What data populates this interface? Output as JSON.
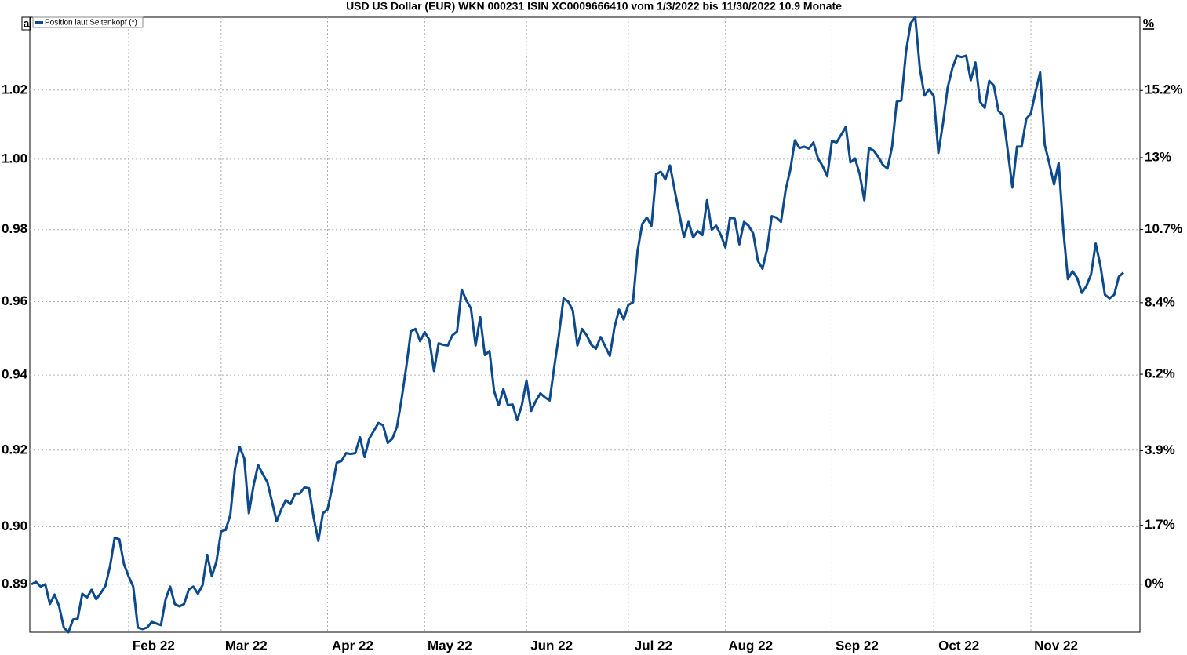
{
  "chart_data": {
    "type": "line",
    "title": "USD US Dollar (EUR) WKN 000231 ISIN XC0009666410 vom 1/3/2022 bis 11/30/2022 10.9 Monate",
    "y_axis_label": "a",
    "y2_axis_label": "%",
    "log_scale": true,
    "grid": true,
    "legend": "top-left",
    "ylim": [
      0.8732,
      1.0415
    ],
    "yticks": [
      {
        "value": 0.8853,
        "label": "0.89"
      },
      {
        "value": 0.9,
        "label": "0.90"
      },
      0.92,
      0.94,
      0.96,
      0.98,
      {
        "value": 1,
        "label": "1.00"
      },
      1.02
    ],
    "y2lim": [
      -1.37,
      17.64
    ],
    "y2ticks": [
      {
        "value": 0,
        "label": "0%"
      },
      {
        "value": 1.7,
        "label": "1.7%"
      },
      {
        "value": 3.9,
        "label": "3.9%"
      },
      {
        "value": 6.2,
        "label": "6.2%"
      },
      {
        "value": 8.4,
        "label": "8.4%"
      },
      {
        "value": 10.7,
        "label": "10.7%"
      },
      {
        "value": 13,
        "label": "13%"
      },
      {
        "value": 15.2,
        "label": "15.2%"
      }
    ],
    "categories": [
      null,
      null,
      null,
      null,
      null,
      null,
      null,
      null,
      null,
      null,
      null,
      null,
      null,
      null,
      null,
      null,
      null,
      null,
      null,
      null,
      null,
      "Feb 22",
      null,
      null,
      null,
      null,
      null,
      null,
      null,
      null,
      null,
      null,
      null,
      null,
      null,
      null,
      null,
      null,
      null,
      null,
      null,
      "Mar 22",
      null,
      null,
      null,
      null,
      null,
      null,
      null,
      null,
      null,
      null,
      null,
      null,
      null,
      null,
      null,
      null,
      null,
      null,
      null,
      null,
      null,
      null,
      "Apr 22",
      null,
      null,
      null,
      null,
      null,
      null,
      null,
      null,
      null,
      null,
      null,
      null,
      null,
      null,
      null,
      null,
      null,
      null,
      null,
      null,
      "May 22",
      null,
      null,
      null,
      null,
      null,
      null,
      null,
      null,
      null,
      null,
      null,
      null,
      null,
      null,
      null,
      null,
      null,
      null,
      null,
      null,
      null,
      "Jun 22",
      null,
      null,
      null,
      null,
      null,
      null,
      null,
      null,
      null,
      null,
      null,
      null,
      null,
      null,
      null,
      null,
      null,
      null,
      null,
      null,
      null,
      "Jul 22",
      null,
      null,
      null,
      null,
      null,
      null,
      null,
      null,
      null,
      null,
      null,
      null,
      null,
      null,
      null,
      null,
      null,
      null,
      null,
      null,
      "Aug 22",
      null,
      null,
      null,
      null,
      null,
      null,
      null,
      null,
      null,
      null,
      null,
      null,
      null,
      null,
      null,
      null,
      null,
      null,
      null,
      null,
      null,
      null,
      "Sep 22",
      null,
      null,
      null,
      null,
      null,
      null,
      null,
      null,
      null,
      null,
      null,
      null,
      null,
      null,
      null,
      null,
      null,
      null,
      null,
      null,
      null,
      "Oct 22",
      null,
      null,
      null,
      null,
      null,
      null,
      null,
      null,
      null,
      null,
      null,
      null,
      null,
      null,
      null,
      null,
      null,
      null,
      null,
      null,
      "Nov 22",
      null,
      null,
      null,
      null,
      null,
      null,
      null,
      null,
      null,
      null,
      null,
      null,
      null,
      null,
      null,
      null,
      null,
      null,
      null,
      null
    ],
    "series": [
      {
        "name": "Position laut Seitenkopf (*)",
        "color": "#0d4a8c",
        "values": [
          0.8853,
          0.8859,
          0.8847,
          0.8853,
          0.8803,
          0.8827,
          0.8797,
          0.8744,
          0.8732,
          0.8764,
          0.8766,
          0.8829,
          0.8819,
          0.8839,
          0.8815,
          0.8831,
          0.8849,
          0.8899,
          0.8972,
          0.8968,
          0.8904,
          0.8873,
          0.8847,
          0.8744,
          0.874,
          0.8744,
          0.8758,
          0.8754,
          0.875,
          0.8815,
          0.8847,
          0.8803,
          0.8797,
          0.8803,
          0.8839,
          0.8847,
          0.8829,
          0.8851,
          0.8928,
          0.8873,
          0.8911,
          0.8988,
          0.8992,
          0.9031,
          0.9151,
          0.9209,
          0.9178,
          0.9035,
          0.9106,
          0.9161,
          0.9137,
          0.9116,
          0.9065,
          0.9014,
          0.9045,
          0.9069,
          0.9059,
          0.9086,
          0.9086,
          0.9102,
          0.91,
          0.9024,
          0.8964,
          0.9035,
          0.9045,
          0.9102,
          0.9167,
          0.9171,
          0.9192,
          0.919,
          0.9192,
          0.9234,
          0.9182,
          0.923,
          0.9251,
          0.9272,
          0.9266,
          0.9219,
          0.923,
          0.9262,
          0.9336,
          0.9421,
          0.9518,
          0.9525,
          0.9492,
          0.9516,
          0.9495,
          0.9411,
          0.9486,
          0.9482,
          0.948,
          0.9508,
          0.9518,
          0.9633,
          0.9604,
          0.9581,
          0.948,
          0.9557,
          0.9454,
          0.9465,
          0.9357,
          0.9319,
          0.9362,
          0.9319,
          0.9321,
          0.9279,
          0.9319,
          0.9385,
          0.9304,
          0.933,
          0.9351,
          0.934,
          0.9332,
          0.9422,
          0.9508,
          0.9609,
          0.96,
          0.9576,
          0.948,
          0.9525,
          0.9508,
          0.9482,
          0.9471,
          0.9503,
          0.9478,
          0.9452,
          0.9529,
          0.9578,
          0.9551,
          0.9591,
          0.9598,
          0.9741,
          0.9816,
          0.9834,
          0.9811,
          0.9957,
          0.9964,
          0.9942,
          0.9982,
          0.9912,
          0.9845,
          0.9778,
          0.9822,
          0.9778,
          0.9796,
          0.9785,
          0.9883,
          0.98,
          0.9811,
          0.9785,
          0.975,
          0.9834,
          0.9831,
          0.9759,
          0.9822,
          0.9811,
          0.9789,
          0.9713,
          0.9691,
          0.9746,
          0.9838,
          0.9834,
          0.9822,
          0.9912,
          0.9969,
          1.0054,
          1.0032,
          1.0036,
          1.003,
          1.0048,
          1.0002,
          0.998,
          0.9951,
          1.0052,
          1.0048,
          1.007,
          1.0093,
          0.9991,
          1.0002,
          0.9957,
          0.9883,
          1.0032,
          1.0025,
          1.0007,
          0.9984,
          0.9973,
          1.0036,
          1.0166,
          1.017,
          1.0312,
          1.0397,
          1.0415,
          1.0263,
          1.0184,
          1.0202,
          1.0182,
          1.0018,
          1.0104,
          1.0207,
          1.0263,
          1.0301,
          1.0297,
          1.0301,
          1.0229,
          1.0281,
          1.0166,
          1.0148,
          1.0227,
          1.0213,
          1.0139,
          1.0127,
          1.0025,
          0.9919,
          1.0036,
          1.0036,
          1.0116,
          1.0132,
          1.0195,
          1.0252,
          1.0041,
          0.9987,
          0.9928,
          0.9989,
          0.98,
          0.9662,
          0.9684,
          0.9665,
          0.9624,
          0.9643,
          0.9675,
          0.9761,
          0.9701,
          0.9619,
          0.9609,
          0.9619,
          0.9669,
          0.968
        ]
      }
    ]
  }
}
